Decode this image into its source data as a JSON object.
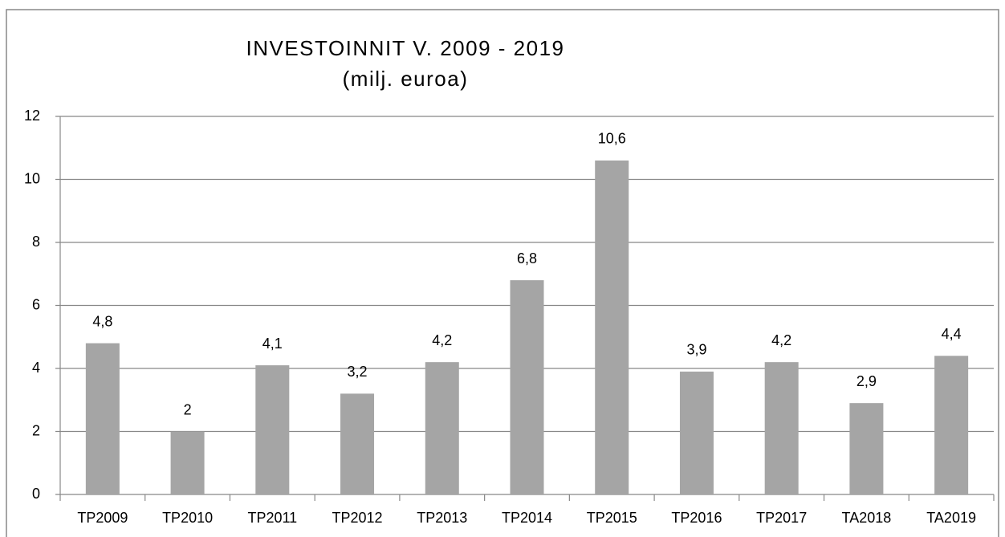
{
  "chart_data": {
    "type": "bar",
    "title": "INVESTOINNIT V. 2009 - 2019",
    "subtitle": "(milj. euroa)",
    "categories": [
      "TP2009",
      "TP2010",
      "TP2011",
      "TP2012",
      "TP2013",
      "TP2014",
      "TP2015",
      "TP2016",
      "TP2017",
      "TA2018",
      "TA2019"
    ],
    "values": [
      4.8,
      2,
      4.1,
      3.2,
      4.2,
      6.8,
      10.6,
      3.9,
      4.2,
      2.9,
      4.4
    ],
    "value_labels": [
      "4,8",
      "2",
      "4,1",
      "3,2",
      "4,2",
      "6,8",
      "10,6",
      "3,9",
      "4,2",
      "2,9",
      "4,4"
    ],
    "color": "#a5a5a5",
    "ylim": [
      0,
      12
    ],
    "yticks": [
      0,
      2,
      4,
      6,
      8,
      10,
      12
    ],
    "grid": true
  }
}
